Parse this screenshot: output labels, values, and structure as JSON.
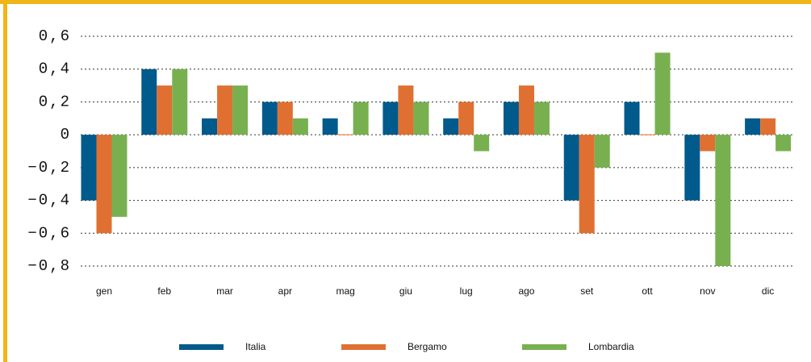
{
  "chart_data": {
    "type": "bar",
    "categories": [
      "gen",
      "feb",
      "mar",
      "apr",
      "mag",
      "giu",
      "lug",
      "ago",
      "set",
      "ott",
      "nov",
      "dic"
    ],
    "series": [
      {
        "name": "Italia",
        "color": "#005a8c",
        "values": [
          -0.4,
          0.4,
          0.1,
          0.2,
          0.1,
          0.2,
          0.1,
          0.2,
          -0.4,
          0.2,
          -0.4,
          0.1
        ]
      },
      {
        "name": "Bergamo",
        "color": "#e07032",
        "values": [
          -0.6,
          0.3,
          0.3,
          0.2,
          0,
          0.3,
          0.2,
          0.3,
          -0.6,
          0,
          -0.1,
          0.1
        ]
      },
      {
        "name": "Lombardia",
        "color": "#78b050",
        "values": [
          -0.5,
          0.4,
          0.3,
          0.1,
          0.2,
          0.2,
          -0.1,
          0.2,
          -0.2,
          0.5,
          -0.8,
          -0.1
        ]
      }
    ],
    "ylim": [
      -0.8,
      0.6
    ],
    "yticks": [
      {
        "value": 0.6,
        "label": "0,6"
      },
      {
        "value": 0.4,
        "label": "0,4"
      },
      {
        "value": 0.2,
        "label": "0,2"
      },
      0,
      {
        "value": -0.2,
        "label": "−0,2"
      },
      {
        "value": -0.4,
        "label": "−0,4"
      },
      {
        "value": -0.6,
        "label": "−0,6"
      },
      {
        "value": -0.8,
        "label": "−0,8"
      }
    ],
    "grid": true
  }
}
